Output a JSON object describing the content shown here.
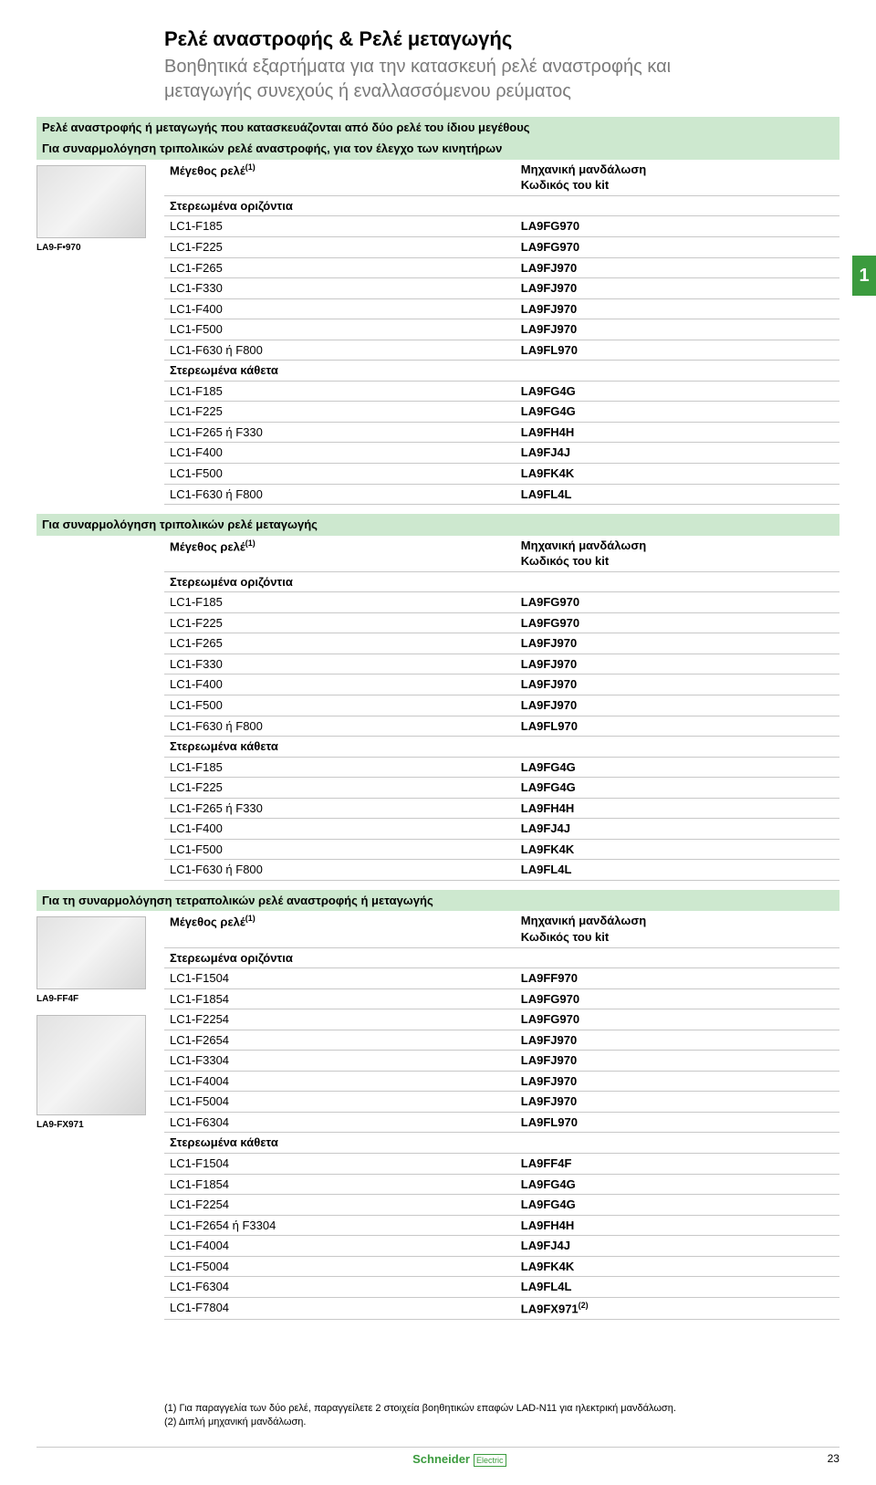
{
  "page_title": "Ρελέ αναστροφής & Ρελέ μεταγωγής",
  "page_subtitle": "Βοηθητικά εξαρτήματα για την κατασκευή ρελέ αναστροφής και μεταγωγής συνεχούς ή εναλλασσόμενου ρεύματος",
  "side_tab": "1",
  "headers": {
    "size": "Μέγεθος ρελέ",
    "size_sup": "(1)",
    "interlock": "Μηχανική μανδάλωση",
    "kitcode": "Κωδικός του kit",
    "horiz": "Στερεωμένα οριζόντια",
    "vert": "Στερεωμένα κάθετα"
  },
  "sections": [
    {
      "title": "Ρελέ αναστροφής ή μεταγωγής που κατασκευάζονται από δύο ρελέ του ίδιου μεγέθους",
      "subheader": "Για συναρμολόγηση τριπολικών ρελέ αναστροφής, για τον έλεγχο των κινητήρων",
      "image_label": "LA9-F•970",
      "has_image": true,
      "horiz_rows": [
        [
          "LC1-F185",
          "LA9FG970"
        ],
        [
          "LC1-F225",
          "LA9FG970"
        ],
        [
          "LC1-F265",
          "LA9FJ970"
        ],
        [
          "LC1-F330",
          "LA9FJ970"
        ],
        [
          "LC1-F400",
          "LA9FJ970"
        ],
        [
          "LC1-F500",
          "LA9FJ970"
        ],
        [
          "LC1-F630 ή F800",
          "LA9FL970"
        ]
      ],
      "vert_rows": [
        [
          "LC1-F185",
          "LA9FG4G"
        ],
        [
          "LC1-F225",
          "LA9FG4G"
        ],
        [
          "LC1-F265 ή F330",
          "LA9FH4H"
        ],
        [
          "LC1-F400",
          "LA9FJ4J"
        ],
        [
          "LC1-F500",
          "LA9FK4K"
        ],
        [
          "LC1-F630 ή F800",
          "LA9FL4L"
        ]
      ]
    },
    {
      "title": "Για συναρμολόγηση τριπολικών ρελέ μεταγωγής",
      "subheader": null,
      "image_label": null,
      "has_image": false,
      "horiz_rows": [
        [
          "LC1-F185",
          "LA9FG970"
        ],
        [
          "LC1-F225",
          "LA9FG970"
        ],
        [
          "LC1-F265",
          "LA9FJ970"
        ],
        [
          "LC1-F330",
          "LA9FJ970"
        ],
        [
          "LC1-F400",
          "LA9FJ970"
        ],
        [
          "LC1-F500",
          "LA9FJ970"
        ],
        [
          "LC1-F630 ή F800",
          "LA9FL970"
        ]
      ],
      "vert_rows": [
        [
          "LC1-F185",
          "LA9FG4G"
        ],
        [
          "LC1-F225",
          "LA9FG4G"
        ],
        [
          "LC1-F265 ή F330",
          "LA9FH4H"
        ],
        [
          "LC1-F400",
          "LA9FJ4J"
        ],
        [
          "LC1-F500",
          "LA9FK4K"
        ],
        [
          "LC1-F630 ή F800",
          "LA9FL4L"
        ]
      ]
    },
    {
      "title": "Για τη συναρμολόγηση τετραπολικών ρελέ αναστροφής ή μεταγωγής",
      "subheader": null,
      "image_label": "LA9-FF4F",
      "image_label2": "LA9-FX971",
      "has_image": true,
      "has_image2": true,
      "horiz_rows": [
        [
          "LC1-F1504",
          "LA9FF970"
        ],
        [
          "LC1-F1854",
          "LA9FG970"
        ],
        [
          "LC1-F2254",
          "LA9FG970"
        ],
        [
          "LC1-F2654",
          "LA9FJ970"
        ],
        [
          "LC1-F3304",
          "LA9FJ970"
        ],
        [
          "LC1-F4004",
          "LA9FJ970"
        ],
        [
          "LC1-F5004",
          "LA9FJ970"
        ],
        [
          "LC1-F6304",
          "LA9FL970"
        ]
      ],
      "vert_rows": [
        [
          "LC1-F1504",
          "LA9FF4F"
        ],
        [
          "LC1-F1854",
          "LA9FG4G"
        ],
        [
          "LC1-F2254",
          "LA9FG4G"
        ],
        [
          "LC1-F2654 ή F3304",
          "LA9FH4H"
        ],
        [
          "LC1-F4004",
          "LA9FJ4J"
        ],
        [
          "LC1-F5004",
          "LA9FK4K"
        ],
        [
          "LC1-F6304",
          "LA9FL4L"
        ],
        [
          "LC1-F7804",
          "LA9FX971",
          "(2)"
        ]
      ]
    }
  ],
  "footnotes": [
    "(1) Για παραγγελία των δύο ρελέ, παραγγείλετε 2 στοιχεία βοηθητικών επαφών LAD-N11 για ηλεκτρική μανδάλωση.",
    "(2) Διπλή μηχανική μανδάλωση."
  ],
  "footer": {
    "logo_main": "Schneider",
    "logo_sub": "Electric",
    "page_number": "23"
  }
}
